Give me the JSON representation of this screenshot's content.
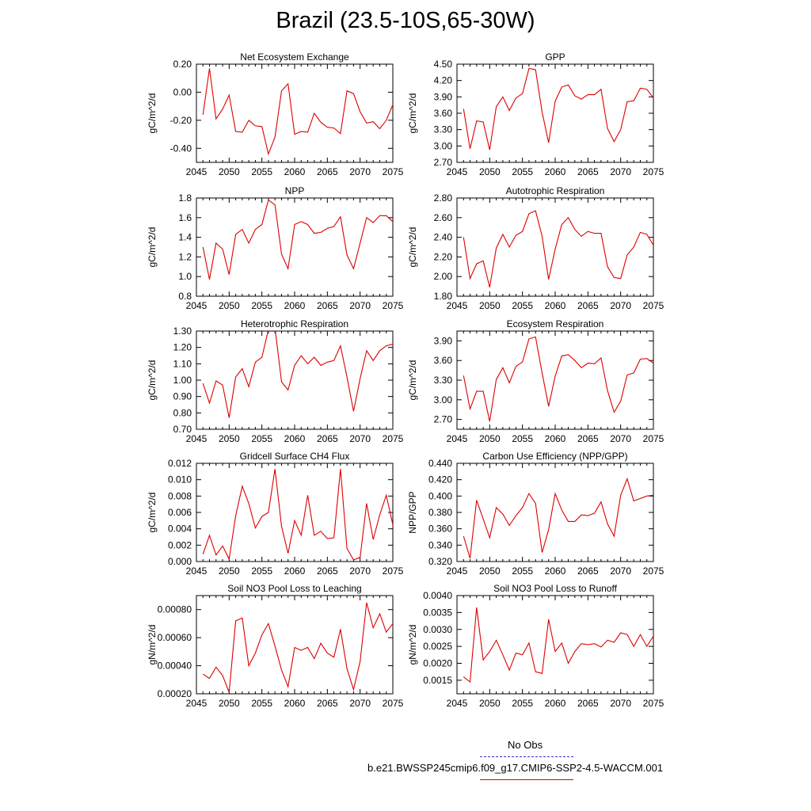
{
  "figure": {
    "title": "Brazil (23.5-10S,65-30W)",
    "legend": {
      "obs_label": "No Obs",
      "obs_color": "#3333cc",
      "model_label": "b.e21.BWSSP245cmip6.f09_g17.CMIP6-SSP2-4.5-WACCM.001",
      "model_color": "#dd0000"
    }
  },
  "chart_data": [
    {
      "type": "line",
      "title": "Net Ecosystem Exchange",
      "ylabel": "gC/m^2/d",
      "xlim": [
        2045,
        2075
      ],
      "ylim": [
        -0.5,
        0.2
      ],
      "xticks": [
        "2045",
        "2050",
        "2055",
        "2060",
        "2065",
        "2070",
        "2075"
      ],
      "yticks": [
        "-0.40",
        "-0.20",
        "0.00",
        "0.20"
      ],
      "x": [
        2046,
        2047,
        2048,
        2049,
        2050,
        2051,
        2052,
        2053,
        2054,
        2055,
        2056,
        2057,
        2058,
        2059,
        2060,
        2061,
        2062,
        2063,
        2064,
        2065,
        2066,
        2067,
        2068,
        2069,
        2070,
        2071,
        2072,
        2073,
        2074,
        2075
      ],
      "series": [
        {
          "color": "#dd0000",
          "values": [
            -0.16,
            0.17,
            -0.19,
            -0.12,
            -0.02,
            -0.28,
            -0.285,
            -0.2,
            -0.24,
            -0.245,
            -0.44,
            -0.32,
            0.01,
            0.06,
            -0.3,
            -0.28,
            -0.285,
            -0.15,
            -0.215,
            -0.25,
            -0.255,
            -0.295,
            0.01,
            -0.01,
            -0.14,
            -0.22,
            -0.21,
            -0.26,
            -0.2,
            -0.09
          ]
        }
      ]
    },
    {
      "type": "line",
      "title": "GPP",
      "ylabel": "gC/m^2/d",
      "xlim": [
        2045,
        2075
      ],
      "ylim": [
        2.7,
        4.5
      ],
      "xticks": [
        "2045",
        "2050",
        "2055",
        "2060",
        "2065",
        "2070",
        "2075"
      ],
      "yticks": [
        "2.70",
        "3.00",
        "3.30",
        "3.60",
        "3.90",
        "4.20",
        "4.50"
      ],
      "x": [
        2046,
        2047,
        2048,
        2049,
        2050,
        2051,
        2052,
        2053,
        2054,
        2055,
        2056,
        2057,
        2058,
        2059,
        2060,
        2061,
        2062,
        2063,
        2064,
        2065,
        2066,
        2067,
        2068,
        2069,
        2070,
        2071,
        2072,
        2073,
        2074,
        2075
      ],
      "series": [
        {
          "color": "#dd0000",
          "values": [
            3.68,
            2.95,
            3.46,
            3.44,
            2.93,
            3.72,
            3.9,
            3.65,
            3.88,
            3.96,
            4.42,
            4.4,
            3.62,
            3.06,
            3.82,
            4.08,
            4.12,
            3.92,
            3.86,
            3.94,
            3.94,
            4.04,
            3.32,
            3.08,
            3.3,
            3.81,
            3.83,
            4.06,
            4.04,
            3.88
          ]
        }
      ]
    },
    {
      "type": "line",
      "title": "NPP",
      "ylabel": "gC/m^2/d",
      "xlim": [
        2045,
        2075
      ],
      "ylim": [
        0.8,
        1.8
      ],
      "xticks": [
        "2045",
        "2050",
        "2055",
        "2060",
        "2065",
        "2070",
        "2075"
      ],
      "yticks": [
        "0.8",
        "1.0",
        "1.2",
        "1.4",
        "1.6",
        "1.8"
      ],
      "x": [
        2046,
        2047,
        2048,
        2049,
        2050,
        2051,
        2052,
        2053,
        2054,
        2055,
        2056,
        2057,
        2058,
        2059,
        2060,
        2061,
        2062,
        2063,
        2064,
        2065,
        2066,
        2067,
        2068,
        2069,
        2070,
        2071,
        2072,
        2073,
        2074,
        2075
      ],
      "series": [
        {
          "color": "#dd0000",
          "values": [
            1.3,
            0.97,
            1.34,
            1.28,
            1.02,
            1.43,
            1.48,
            1.34,
            1.48,
            1.53,
            1.78,
            1.73,
            1.23,
            1.08,
            1.53,
            1.56,
            1.53,
            1.44,
            1.45,
            1.49,
            1.51,
            1.61,
            1.22,
            1.08,
            1.34,
            1.6,
            1.55,
            1.62,
            1.62,
            1.56
          ]
        }
      ]
    },
    {
      "type": "line",
      "title": "Autotrophic Respiration",
      "ylabel": "gC/m^2/d",
      "xlim": [
        2045,
        2075
      ],
      "ylim": [
        1.8,
        2.8
      ],
      "xticks": [
        "2045",
        "2050",
        "2055",
        "2060",
        "2065",
        "2070",
        "2075"
      ],
      "yticks": [
        "1.80",
        "2.00",
        "2.20",
        "2.40",
        "2.60",
        "2.80"
      ],
      "x": [
        2046,
        2047,
        2048,
        2049,
        2050,
        2051,
        2052,
        2053,
        2054,
        2055,
        2056,
        2057,
        2058,
        2059,
        2060,
        2061,
        2062,
        2063,
        2064,
        2065,
        2066,
        2067,
        2068,
        2069,
        2070,
        2071,
        2072,
        2073,
        2074,
        2075
      ],
      "series": [
        {
          "color": "#dd0000",
          "values": [
            2.4,
            1.98,
            2.13,
            2.16,
            1.89,
            2.29,
            2.43,
            2.3,
            2.42,
            2.46,
            2.64,
            2.67,
            2.41,
            1.97,
            2.28,
            2.53,
            2.6,
            2.48,
            2.41,
            2.46,
            2.44,
            2.44,
            2.1,
            1.99,
            1.98,
            2.22,
            2.3,
            2.45,
            2.43,
            2.32
          ]
        }
      ]
    },
    {
      "type": "line",
      "title": "Heterotrophic Respiration",
      "ylabel": "gC/m^2/d",
      "xlim": [
        2045,
        2075
      ],
      "ylim": [
        0.7,
        1.3
      ],
      "xticks": [
        "2045",
        "2050",
        "2055",
        "2060",
        "2065",
        "2070",
        "2075"
      ],
      "yticks": [
        "0.70",
        "0.80",
        "0.90",
        "1.00",
        "1.10",
        "1.20",
        "1.30"
      ],
      "x": [
        2046,
        2047,
        2048,
        2049,
        2050,
        2051,
        2052,
        2053,
        2054,
        2055,
        2056,
        2057,
        2058,
        2059,
        2060,
        2061,
        2062,
        2063,
        2064,
        2065,
        2066,
        2067,
        2068,
        2069,
        2070,
        2071,
        2072,
        2073,
        2074,
        2075
      ],
      "series": [
        {
          "color": "#dd0000",
          "values": [
            0.98,
            0.86,
            0.995,
            0.97,
            0.77,
            1.02,
            1.07,
            0.96,
            1.11,
            1.14,
            1.31,
            1.32,
            0.99,
            0.94,
            1.09,
            1.15,
            1.1,
            1.14,
            1.09,
            1.11,
            1.12,
            1.21,
            1.02,
            0.81,
            1.01,
            1.18,
            1.12,
            1.18,
            1.21,
            1.22
          ]
        }
      ]
    },
    {
      "type": "line",
      "title": "Ecosystem Respiration",
      "ylabel": "gC/m^2/d",
      "xlim": [
        2045,
        2075
      ],
      "ylim": [
        2.55,
        4.05
      ],
      "xticks": [
        "2045",
        "2050",
        "2055",
        "2060",
        "2065",
        "2070",
        "2075"
      ],
      "yticks": [
        "2.70",
        "3.00",
        "3.30",
        "3.60",
        "3.90"
      ],
      "x": [
        2046,
        2047,
        2048,
        2049,
        2050,
        2051,
        2052,
        2053,
        2054,
        2055,
        2056,
        2057,
        2058,
        2059,
        2060,
        2061,
        2062,
        2063,
        2064,
        2065,
        2066,
        2067,
        2068,
        2069,
        2070,
        2071,
        2072,
        2073,
        2074,
        2075
      ],
      "series": [
        {
          "color": "#dd0000",
          "values": [
            3.37,
            2.86,
            3.13,
            3.13,
            2.67,
            3.31,
            3.49,
            3.26,
            3.51,
            3.58,
            3.93,
            3.96,
            3.41,
            2.9,
            3.36,
            3.67,
            3.69,
            3.6,
            3.49,
            3.56,
            3.55,
            3.64,
            3.14,
            2.81,
            2.98,
            3.38,
            3.41,
            3.62,
            3.63,
            3.56
          ]
        }
      ]
    },
    {
      "type": "line",
      "title": "Gridcell Surface CH4 Flux",
      "ylabel": "gC/m^2/d",
      "xlim": [
        2045,
        2075
      ],
      "ylim": [
        0.0,
        0.012
      ],
      "xticks": [
        "2045",
        "2050",
        "2055",
        "2060",
        "2065",
        "2070",
        "2075"
      ],
      "yticks": [
        "0.000",
        "0.002",
        "0.004",
        "0.006",
        "0.008",
        "0.010",
        "0.012"
      ],
      "x": [
        2046,
        2047,
        2048,
        2049,
        2050,
        2051,
        2052,
        2053,
        2054,
        2055,
        2056,
        2057,
        2058,
        2059,
        2060,
        2061,
        2062,
        2063,
        2064,
        2065,
        2066,
        2067,
        2068,
        2069,
        2070,
        2071,
        2072,
        2073,
        2074,
        2075
      ],
      "series": [
        {
          "color": "#dd0000",
          "values": [
            0.0009,
            0.0032,
            0.0008,
            0.0019,
            0.0003,
            0.0056,
            0.0092,
            0.0071,
            0.0041,
            0.0055,
            0.006,
            0.0113,
            0.0043,
            0.001,
            0.005,
            0.0032,
            0.0081,
            0.0032,
            0.0037,
            0.0028,
            0.0029,
            0.0113,
            0.0016,
            0.0002,
            0.0005,
            0.0071,
            0.0027,
            0.0057,
            0.0081,
            0.0045
          ]
        }
      ]
    },
    {
      "type": "line",
      "title": "Carbon Use Efficiency (NPP/GPP)",
      "ylabel": "NPP/GPP",
      "xlim": [
        2045,
        2075
      ],
      "ylim": [
        0.32,
        0.44
      ],
      "xticks": [
        "2045",
        "2050",
        "2055",
        "2060",
        "2065",
        "2070",
        "2075"
      ],
      "yticks": [
        "0.320",
        "0.340",
        "0.360",
        "0.380",
        "0.400",
        "0.420",
        "0.440"
      ],
      "x": [
        2046,
        2047,
        2048,
        2049,
        2050,
        2051,
        2052,
        2053,
        2054,
        2055,
        2056,
        2057,
        2058,
        2059,
        2060,
        2061,
        2062,
        2063,
        2064,
        2065,
        2066,
        2067,
        2068,
        2069,
        2070,
        2071,
        2072,
        2073,
        2074,
        2075
      ],
      "series": [
        {
          "color": "#dd0000",
          "values": [
            0.351,
            0.324,
            0.395,
            0.372,
            0.349,
            0.386,
            0.378,
            0.364,
            0.376,
            0.386,
            0.403,
            0.391,
            0.331,
            0.359,
            0.403,
            0.383,
            0.369,
            0.369,
            0.377,
            0.376,
            0.379,
            0.393,
            0.366,
            0.351,
            0.401,
            0.421,
            0.394,
            0.397,
            0.4,
            0.401
          ]
        }
      ]
    },
    {
      "type": "line",
      "title": "Soil NO3 Pool Loss to Leaching",
      "ylabel": "gN/m^2/d",
      "xlim": [
        2045,
        2075
      ],
      "ylim": [
        0.0002,
        0.0009
      ],
      "xticks": [
        "2045",
        "2050",
        "2055",
        "2060",
        "2065",
        "2070",
        "2075"
      ],
      "yticks": [
        "0.00020",
        "0.00040",
        "0.00060",
        "0.00080"
      ],
      "x": [
        2046,
        2047,
        2048,
        2049,
        2050,
        2051,
        2052,
        2053,
        2054,
        2055,
        2056,
        2057,
        2058,
        2059,
        2060,
        2061,
        2062,
        2063,
        2064,
        2065,
        2066,
        2067,
        2068,
        2069,
        2070,
        2071,
        2072,
        2073,
        2074,
        2075
      ],
      "series": [
        {
          "color": "#dd0000",
          "values": [
            0.00034,
            0.00031,
            0.00039,
            0.00033,
            0.00021,
            0.00072,
            0.00074,
            0.0004,
            0.00049,
            0.00062,
            0.0007,
            0.00054,
            0.00037,
            0.00025,
            0.00053,
            0.00051,
            0.00053,
            0.00045,
            0.00056,
            0.00049,
            0.00046,
            0.00066,
            0.00038,
            0.00023,
            0.00043,
            0.00085,
            0.00067,
            0.00077,
            0.00064,
            0.0007
          ]
        }
      ]
    },
    {
      "type": "line",
      "title": "Soil NO3 Pool Loss to Runoff",
      "ylabel": "gN/m^2/d",
      "xlim": [
        2045,
        2075
      ],
      "ylim": [
        0.0011,
        0.004
      ],
      "xticks": [
        "2045",
        "2050",
        "2055",
        "2060",
        "2065",
        "2070",
        "2075"
      ],
      "yticks": [
        "0.0015",
        "0.0020",
        "0.0025",
        "0.0030",
        "0.0035",
        "0.0040"
      ],
      "x": [
        2046,
        2047,
        2048,
        2049,
        2050,
        2051,
        2052,
        2053,
        2054,
        2055,
        2056,
        2057,
        2058,
        2059,
        2060,
        2061,
        2062,
        2063,
        2064,
        2065,
        2066,
        2067,
        2068,
        2069,
        2070,
        2071,
        2072,
        2073,
        2074,
        2075
      ],
      "series": [
        {
          "color": "#dd0000",
          "values": [
            0.0016,
            0.00145,
            0.00365,
            0.0021,
            0.00235,
            0.00268,
            0.00225,
            0.0018,
            0.0023,
            0.00225,
            0.0026,
            0.00175,
            0.0017,
            0.0033,
            0.00235,
            0.0026,
            0.002,
            0.00235,
            0.00258,
            0.00255,
            0.00258,
            0.00248,
            0.00268,
            0.00262,
            0.0029,
            0.00285,
            0.0025,
            0.00285,
            0.0025,
            0.0028
          ]
        }
      ]
    }
  ]
}
